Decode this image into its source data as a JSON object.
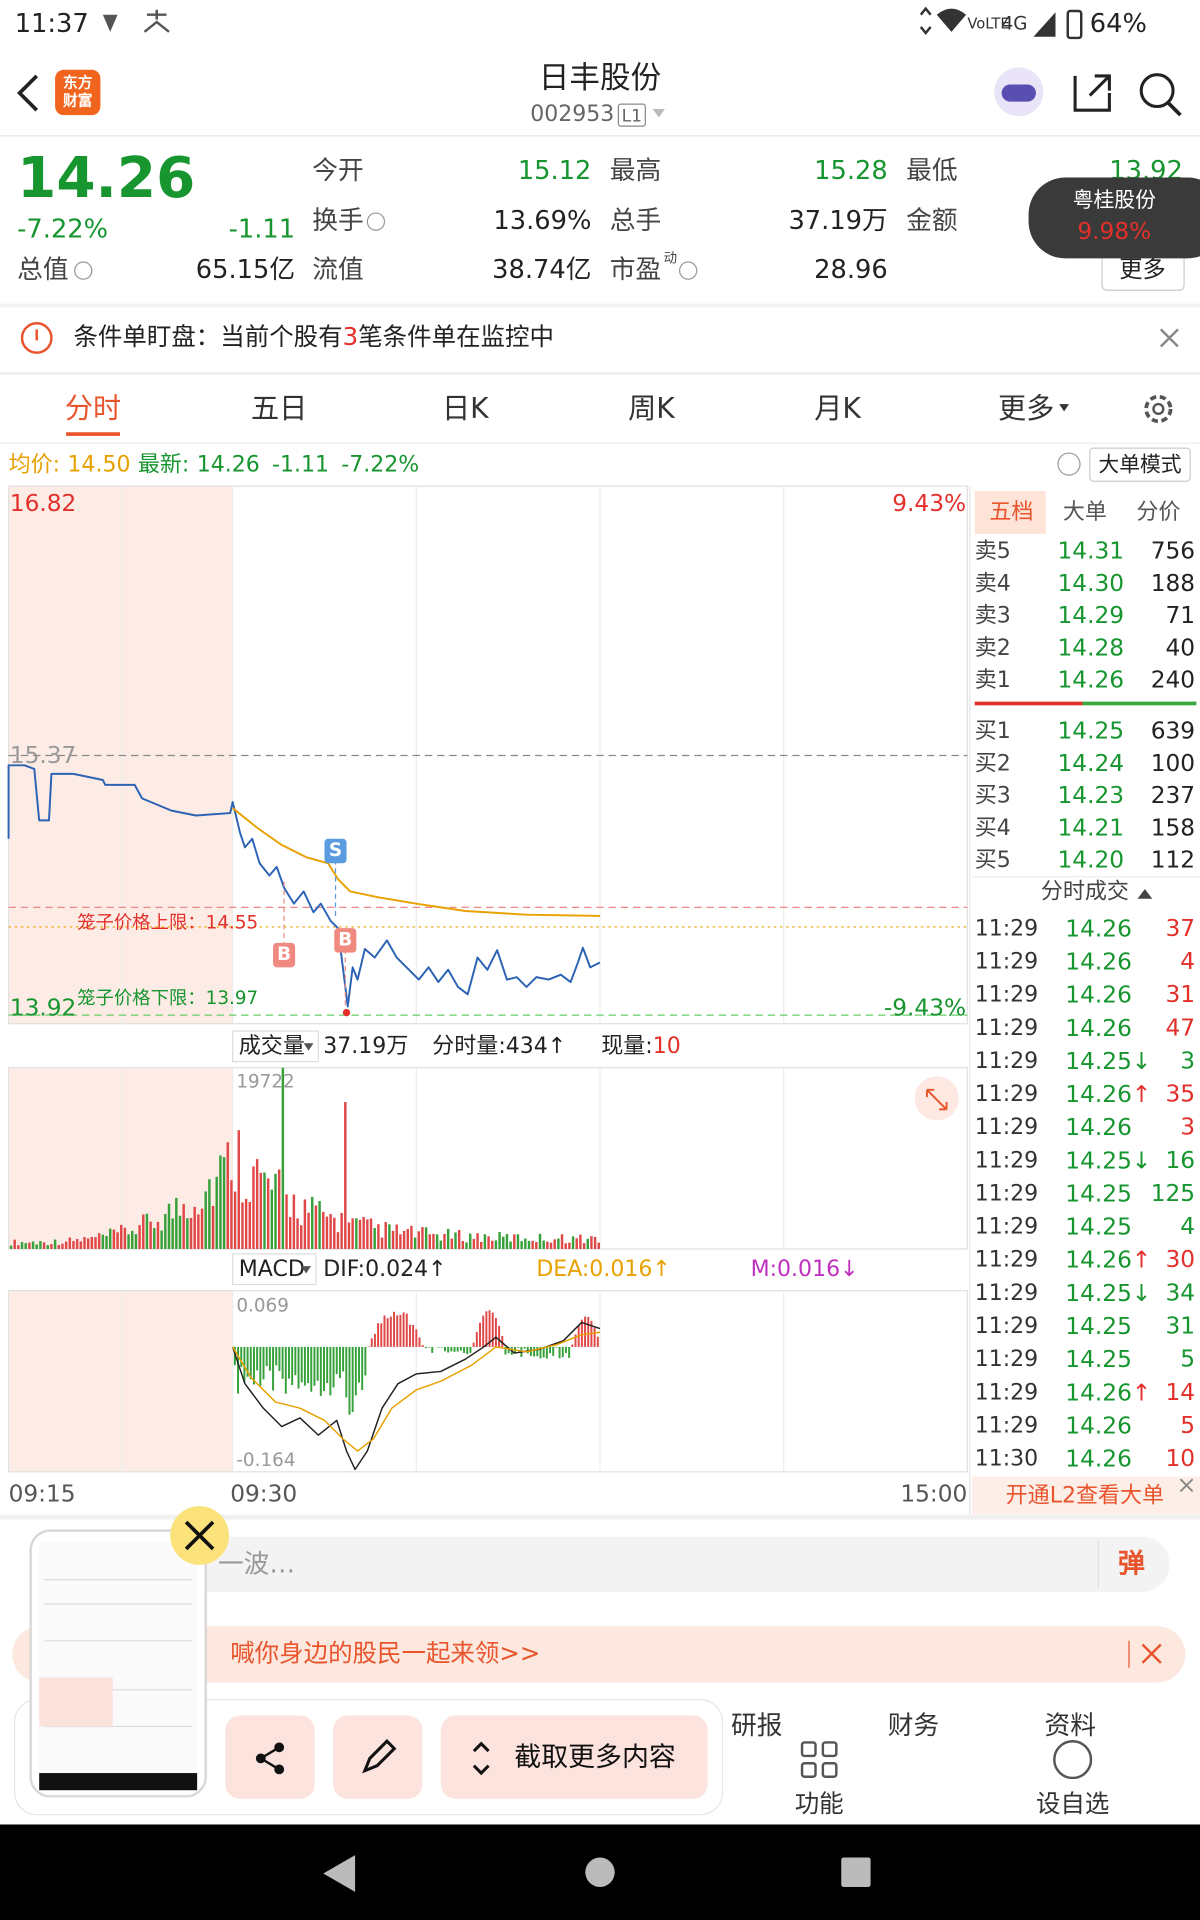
{
  "status_bar": {
    "time": "11:37",
    "volte": "VoLTE",
    "network": "4G",
    "battery": "64%"
  },
  "header": {
    "logo": [
      "东方",
      "财富"
    ],
    "title": "日丰股份",
    "code": "002953",
    "level": "L1"
  },
  "quote": {
    "price": "14.26",
    "change_pct": "-7.22%",
    "change": "-1.11",
    "total_value_label": "总值",
    "total_value": "65.15亿",
    "fields": [
      {
        "label": "今开",
        "value": "15.12",
        "color": "green"
      },
      {
        "label": "最高",
        "value": "15.28",
        "color": "green"
      },
      {
        "label": "最低",
        "value": "13.92",
        "color": "green"
      },
      {
        "label": "换手",
        "value": "13.69%"
      },
      {
        "label": "总手",
        "value": "37.19万"
      },
      {
        "label": "金额"
      },
      {
        "label": "流值",
        "value": "38.74亿"
      },
      {
        "label": "市盈",
        "superscript": "动",
        "value": "28.96"
      }
    ],
    "more": "更多"
  },
  "popup": {
    "name": "粤桂股份",
    "change": "9.98%"
  },
  "notice": {
    "prefix": "条件单盯盘：当前个股有",
    "count": "3",
    "suffix": "笔条件单在监控中"
  },
  "tabs": {
    "items": [
      "分时",
      "五日",
      "日K",
      "周K",
      "月K",
      "更多"
    ],
    "active": 0
  },
  "info_line": {
    "avg_label": "均价:",
    "avg": "14.50",
    "latest_label": "最新:",
    "latest": "14.26",
    "change": "-1.11",
    "change_pct": "-7.22%",
    "mode_button": "大单模式"
  },
  "price_chart": {
    "high": "16.82",
    "prev_close": "15.37",
    "low": "13.92",
    "high_pct": "9.43%",
    "low_pct": "-9.43%",
    "cage_upper": "笼子价格上限：14.55",
    "cage_lower": "笼子价格下限：13.97",
    "markers": [
      "B",
      "S",
      "B"
    ]
  },
  "volume_chart": {
    "label": "成交量",
    "total": "37.19万",
    "minute_volume": "分时量:434↑",
    "current_label": "现量:",
    "current": "10",
    "max": "19722"
  },
  "macd_chart": {
    "label": "MACD",
    "dif": "DIF:0.024↑",
    "dea": "DEA:0.016↑",
    "m": "M:0.016↓",
    "max": "0.069",
    "min": "-0.164"
  },
  "time_axis": [
    "09:15",
    "09:30",
    "15:00"
  ],
  "order_book": {
    "tabs": [
      "五档",
      "大单",
      "分价"
    ],
    "asks": [
      {
        "label": "卖5",
        "price": "14.31",
        "volume": "756"
      },
      {
        "label": "卖4",
        "price": "14.30",
        "volume": "188"
      },
      {
        "label": "卖3",
        "price": "14.29",
        "volume": "71"
      },
      {
        "label": "卖2",
        "price": "14.28",
        "volume": "40"
      },
      {
        "label": "卖1",
        "price": "14.26",
        "volume": "240"
      }
    ],
    "bids": [
      {
        "label": "买1",
        "price": "14.25",
        "volume": "639"
      },
      {
        "label": "买2",
        "price": "14.24",
        "volume": "100"
      },
      {
        "label": "买3",
        "price": "14.23",
        "volume": "237"
      },
      {
        "label": "买4",
        "price": "14.21",
        "volume": "158"
      },
      {
        "label": "买5",
        "price": "14.20",
        "volume": "112"
      }
    ]
  },
  "trades": {
    "title": "分时成交",
    "rows": [
      {
        "time": "11:29",
        "price": "14.26",
        "volume": "37",
        "color": "red"
      },
      {
        "time": "11:29",
        "price": "14.26",
        "volume": "4",
        "color": "red"
      },
      {
        "time": "11:29",
        "price": "14.26",
        "volume": "31",
        "color": "red"
      },
      {
        "time": "11:29",
        "price": "14.26",
        "volume": "47",
        "color": "red"
      },
      {
        "time": "11:29",
        "price": "14.25",
        "arrow": "↓",
        "volume": "3",
        "color": "green"
      },
      {
        "time": "11:29",
        "price": "14.26",
        "arrow": "↑",
        "volume": "35",
        "color": "red"
      },
      {
        "time": "11:29",
        "price": "14.26",
        "volume": "3",
        "color": "red"
      },
      {
        "time": "11:29",
        "price": "14.25",
        "arrow": "↓",
        "volume": "16",
        "color": "green"
      },
      {
        "time": "11:29",
        "price": "14.25",
        "volume": "125",
        "color": "green"
      },
      {
        "time": "11:29",
        "price": "14.25",
        "volume": "4",
        "color": "green"
      },
      {
        "time": "11:29",
        "price": "14.26",
        "arrow": "↑",
        "volume": "30",
        "color": "red"
      },
      {
        "time": "11:29",
        "price": "14.25",
        "arrow": "↓",
        "volume": "34",
        "color": "green"
      },
      {
        "time": "11:29",
        "price": "14.25",
        "volume": "31",
        "color": "green"
      },
      {
        "time": "11:29",
        "price": "14.25",
        "volume": "5",
        "color": "green"
      },
      {
        "time": "11:29",
        "price": "14.26",
        "arrow": "↑",
        "volume": "14",
        "color": "red"
      },
      {
        "time": "11:29",
        "price": "14.26",
        "volume": "5",
        "color": "red"
      },
      {
        "time": "11:30",
        "price": "14.26",
        "volume": "10",
        "color": "red"
      }
    ],
    "l2_link": "开通L2查看大单"
  },
  "comment_bar": {
    "placeholder": "一波…",
    "button": "弹"
  },
  "banner": {
    "text": "喊你身边的股民一起来领>>"
  },
  "bottom_nav": {
    "tabs": [
      "研报",
      "财务",
      "资料"
    ],
    "buttons": [
      "功能",
      "设自选"
    ]
  },
  "screenshot_overlay": {
    "more": "截取更多内容"
  }
}
